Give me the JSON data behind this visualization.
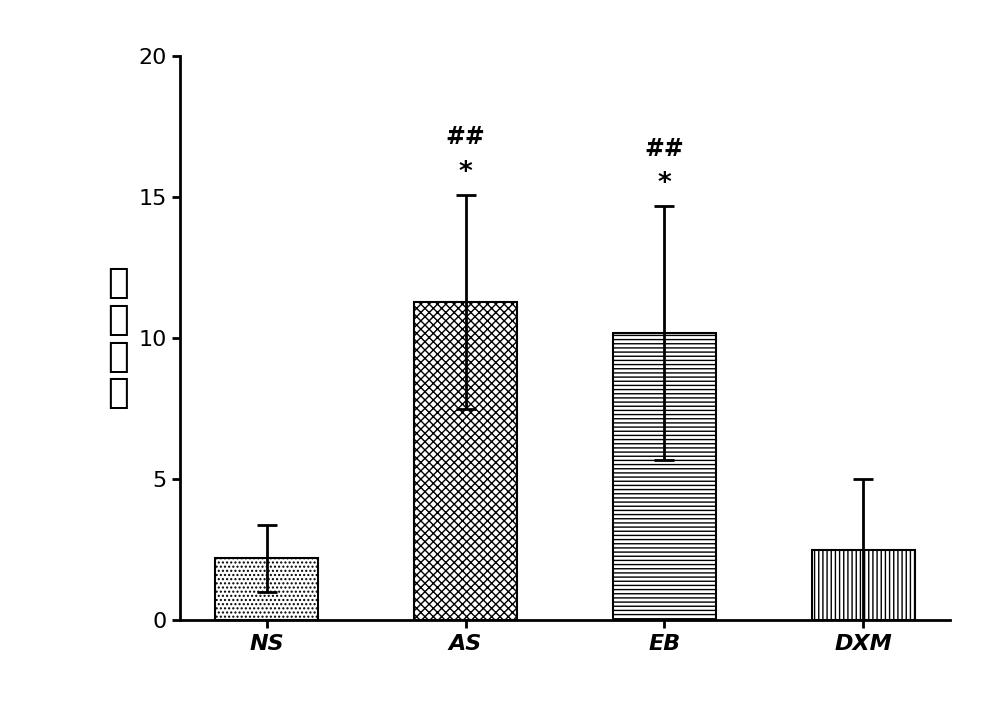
{
  "categories": [
    "NS",
    "AS",
    "EB",
    "DXM"
  ],
  "values": [
    2.2,
    11.3,
    10.2,
    2.5
  ],
  "errors": [
    1.2,
    3.8,
    4.5,
    2.5
  ],
  "ylabel_chars": [
    "咋",
    "嗽",
    "计",
    "数"
  ],
  "ylim": [
    0,
    20
  ],
  "yticks": [
    0,
    5,
    10,
    15,
    20
  ],
  "bar_width": 0.52,
  "background_color": "#ffffff",
  "bar_edge_color": "#000000",
  "error_color": "#000000",
  "annotations": {
    "AS": [
      "##",
      "*"
    ],
    "EB": [
      "##",
      "*"
    ]
  },
  "hatch_patterns": [
    "....",
    "xxxx",
    "----",
    "||||"
  ],
  "tick_fontsize": 16,
  "annot_fontsize_hash": 17,
  "annot_fontsize_star": 19
}
